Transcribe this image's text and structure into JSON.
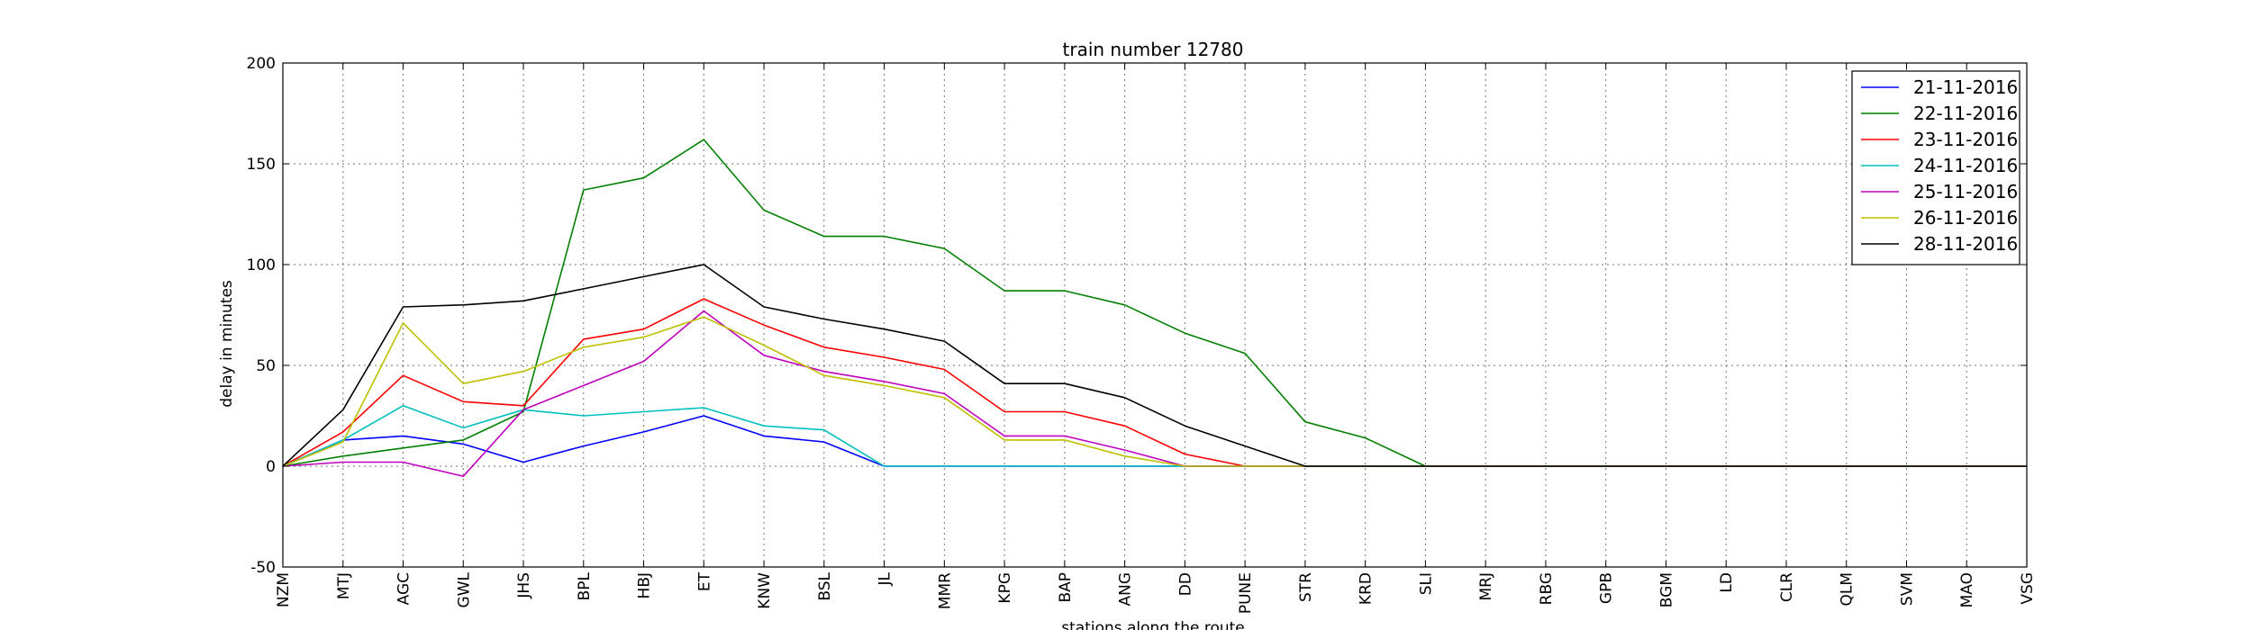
{
  "chart_data": {
    "type": "line",
    "title": "train number 12780",
    "xlabel": "stations along the route",
    "ylabel": "delay in minutes",
    "ylim": [
      -50,
      200
    ],
    "yticks": [
      -50,
      0,
      50,
      100,
      150,
      200
    ],
    "grid": true,
    "legend_position": "top-right",
    "categories": [
      "NZM",
      "MTJ",
      "AGC",
      "GWL",
      "JHS",
      "BPL",
      "HBJ",
      "ET",
      "KNW",
      "BSL",
      "JL",
      "MMR",
      "KPG",
      "BAP",
      "ANG",
      "DD",
      "PUNE",
      "STR",
      "KRD",
      "SLI",
      "MRJ",
      "RBG",
      "GPB",
      "BGM",
      "LD",
      "CLR",
      "QLM",
      "SVM",
      "MAO",
      "VSG"
    ],
    "series": [
      {
        "name": "21-11-2016",
        "color": "#0000ff",
        "values": [
          0,
          13,
          15,
          11,
          2,
          10,
          17,
          25,
          15,
          12,
          0,
          0,
          0,
          0,
          0,
          0,
          0,
          0,
          0,
          0,
          0,
          0,
          0,
          0,
          0,
          0,
          0,
          0,
          0,
          0
        ]
      },
      {
        "name": "22-11-2016",
        "color": "#008000",
        "values": [
          0,
          5,
          9,
          13,
          27,
          137,
          143,
          162,
          127,
          114,
          114,
          108,
          87,
          87,
          80,
          66,
          56,
          22,
          14,
          0,
          0,
          0,
          0,
          0,
          0,
          0,
          0,
          0,
          0,
          0
        ]
      },
      {
        "name": "23-11-2016",
        "color": "#ff0000",
        "values": [
          0,
          17,
          45,
          32,
          30,
          63,
          68,
          83,
          70,
          59,
          54,
          48,
          27,
          27,
          20,
          6,
          0,
          0,
          0,
          0,
          0,
          0,
          0,
          0,
          0,
          0,
          0,
          0,
          0,
          0
        ]
      },
      {
        "name": "24-11-2016",
        "color": "#00bfbf",
        "values": [
          0,
          13,
          30,
          19,
          28,
          25,
          27,
          29,
          20,
          18,
          0,
          0,
          0,
          0,
          0,
          0,
          0,
          0,
          0,
          0,
          0,
          0,
          0,
          0,
          0,
          0,
          0,
          0,
          0,
          0
        ]
      },
      {
        "name": "25-11-2016",
        "color": "#bf00bf",
        "values": [
          0,
          2,
          2,
          -5,
          28,
          40,
          52,
          77,
          55,
          47,
          42,
          36,
          15,
          15,
          8,
          0,
          0,
          0,
          0,
          0,
          0,
          0,
          0,
          0,
          0,
          0,
          0,
          0,
          0,
          0
        ]
      },
      {
        "name": "26-11-2016",
        "color": "#bfbf00",
        "values": [
          0,
          12,
          71,
          41,
          47,
          59,
          64,
          74,
          60,
          45,
          40,
          34,
          13,
          13,
          5,
          0,
          0,
          0,
          0,
          0,
          0,
          0,
          0,
          0,
          0,
          0,
          0,
          0,
          0,
          0
        ]
      },
      {
        "name": "28-11-2016",
        "color": "#000000",
        "values": [
          0,
          28,
          79,
          80,
          82,
          88,
          94,
          100,
          79,
          73,
          68,
          62,
          41,
          41,
          34,
          20,
          10,
          0,
          0,
          0,
          0,
          0,
          0,
          0,
          0,
          0,
          0,
          0,
          0,
          0
        ]
      }
    ]
  }
}
